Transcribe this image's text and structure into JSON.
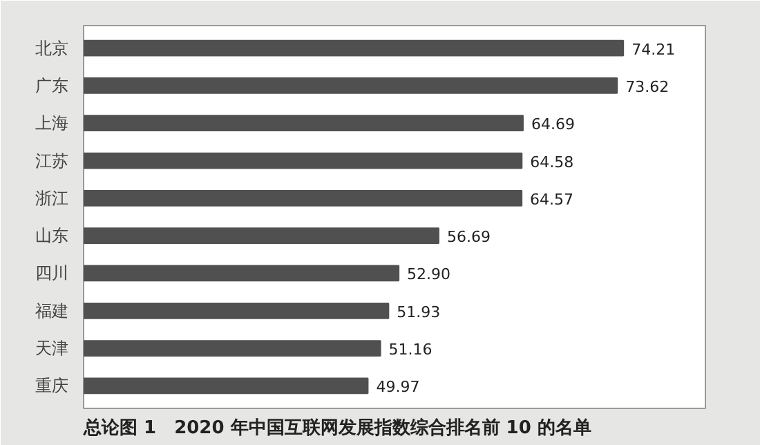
{
  "chart_data": {
    "type": "bar",
    "orientation": "horizontal",
    "title": "总论图 1　2020 年中国互联网发展指数综合排名前 10 的名单",
    "categories": [
      "北京",
      "广东",
      "上海",
      "江苏",
      "浙江",
      "山东",
      "四川",
      "福建",
      "天津",
      "重庆"
    ],
    "values": [
      74.21,
      73.62,
      64.69,
      64.58,
      64.57,
      56.69,
      52.9,
      51.93,
      51.16,
      49.97
    ],
    "value_labels": [
      "74.21",
      "73.62",
      "64.69",
      "64.58",
      "64.57",
      "56.69",
      "52.90",
      "51.93",
      "51.16",
      "49.97"
    ],
    "color": "#505050",
    "xlim": [
      23,
      82
    ],
    "grid": false
  }
}
